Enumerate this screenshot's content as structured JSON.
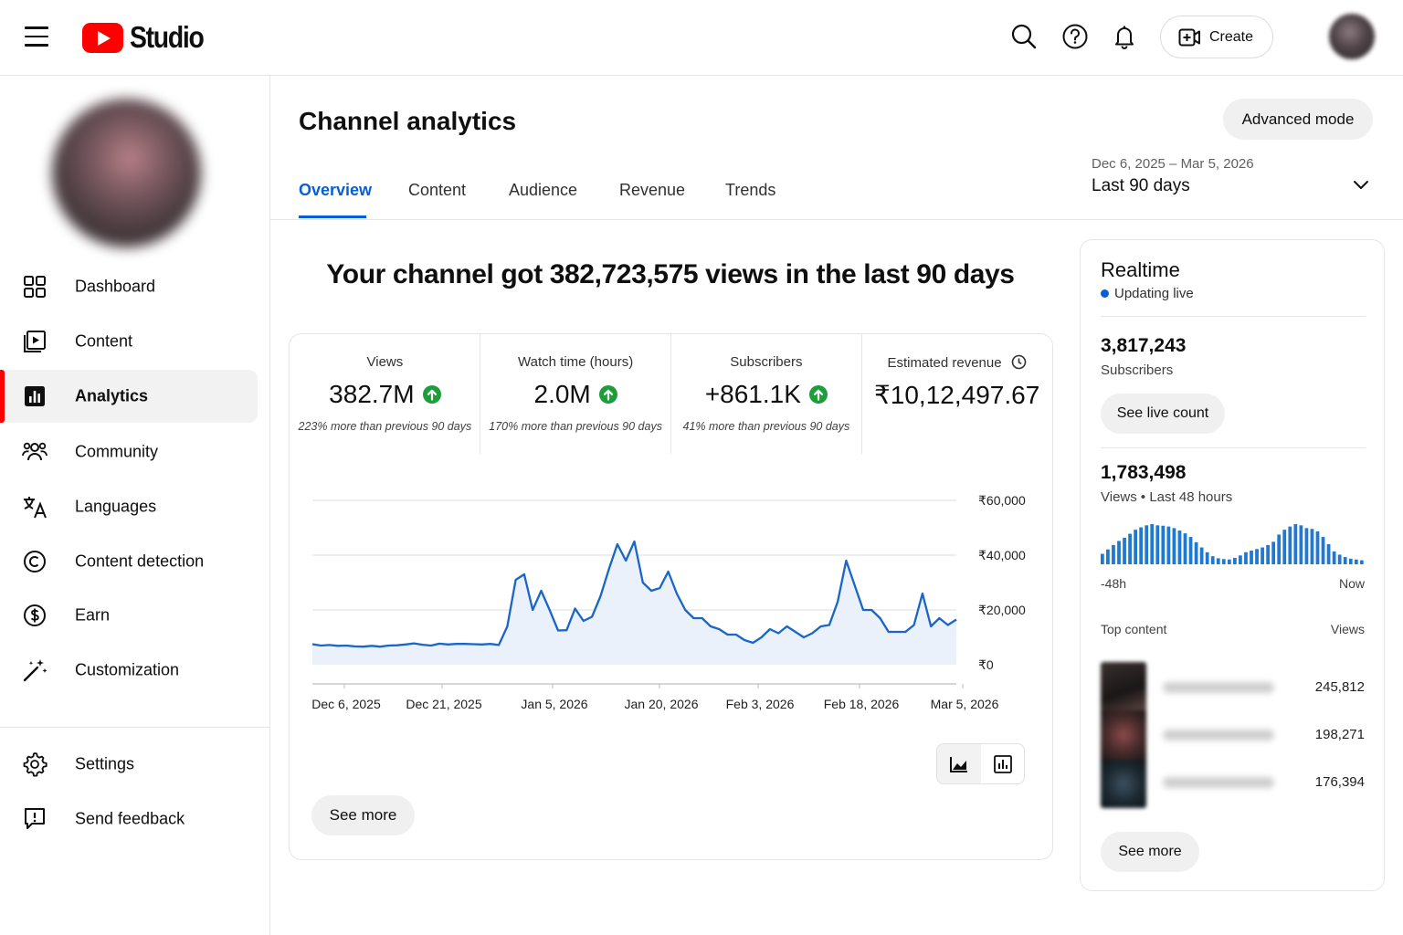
{
  "app": {
    "logo_text": "Studio"
  },
  "header": {
    "create_label": "Create"
  },
  "sidebar": {
    "items": [
      {
        "label": "Dashboard",
        "icon": "dashboard-icon"
      },
      {
        "label": "Content",
        "icon": "content-icon"
      },
      {
        "label": "Analytics",
        "icon": "analytics-icon",
        "active": true
      },
      {
        "label": "Community",
        "icon": "community-icon"
      },
      {
        "label": "Languages",
        "icon": "languages-icon"
      },
      {
        "label": "Content detection",
        "icon": "copyright-icon"
      },
      {
        "label": "Earn",
        "icon": "dollar-icon"
      },
      {
        "label": "Customization",
        "icon": "magic-wand-icon"
      }
    ],
    "bottom_items": [
      {
        "label": "Settings",
        "icon": "gear-icon"
      },
      {
        "label": "Send feedback",
        "icon": "feedback-icon"
      }
    ]
  },
  "main": {
    "title": "Channel analytics",
    "advanced_mode_label": "Advanced mode",
    "tabs": [
      {
        "label": "Overview",
        "active": true
      },
      {
        "label": "Content"
      },
      {
        "label": "Audience"
      },
      {
        "label": "Revenue"
      },
      {
        "label": "Trends"
      }
    ],
    "date_range": "Dec 6, 2025 – Mar 5, 2026",
    "date_preset": "Last 90 days",
    "headline": "Your channel got 382,723,575 views in the last 90 days",
    "metrics": [
      {
        "title": "Views",
        "value": "382.7M",
        "note": "223% more than previous 90 days",
        "trend": "up"
      },
      {
        "title": "Watch time (hours)",
        "value": "2.0M",
        "note": "170% more than previous 90 days",
        "trend": "up"
      },
      {
        "title": "Subscribers",
        "value": "+861.1K",
        "note": "41% more than previous 90 days",
        "trend": "up"
      },
      {
        "title": "Estimated revenue",
        "value": "₹10,12,497.67",
        "note": "",
        "trend": "none"
      }
    ],
    "see_more_label": "See more"
  },
  "chart_data": {
    "type": "area",
    "x_tick_labels": [
      "Dec 6, 2025",
      "Dec 21, 2025",
      "Jan 5, 2026",
      "Jan 20, 2026",
      "Feb 3, 2026",
      "Feb 18, 2026",
      "Mar 5, 2026"
    ],
    "y_tick_labels": [
      "₹60,000",
      "₹40,000",
      "₹20,000",
      "₹0"
    ],
    "ylim": [
      0,
      60000
    ],
    "y_axis_side": "right",
    "grid": true,
    "series": [
      {
        "color": "#1a65c8",
        "values": [
          7500,
          7000,
          7200,
          6900,
          7000,
          6700,
          6600,
          6900,
          6600,
          7000,
          7100,
          7400,
          7800,
          7300,
          7000,
          7700,
          7400,
          7600,
          7600,
          7500,
          7400,
          7600,
          7200,
          14000,
          31000,
          33000,
          20000,
          27000,
          20000,
          12500,
          12600,
          20500,
          16000,
          17500,
          25000,
          35000,
          44000,
          38000,
          45000,
          30000,
          27000,
          28000,
          34000,
          26000,
          20000,
          17000,
          17000,
          14000,
          13000,
          11000,
          11000,
          9000,
          8000,
          10000,
          13000,
          11500,
          14000,
          12000,
          10000,
          11500,
          14000,
          14500,
          23000,
          38000,
          29000,
          20000,
          20000,
          17000,
          12000,
          12000,
          12000,
          14500,
          26000,
          14000,
          17000,
          14500,
          16500
        ]
      }
    ]
  },
  "realtime": {
    "title": "Realtime",
    "live_label": "Updating live",
    "subscribers_value": "3,817,243",
    "subscribers_label": "Subscribers",
    "see_live_count_label": "See live count",
    "views_value": "1,783,498",
    "views_label": "Views • Last 48 hours",
    "axis_start": "-48h",
    "axis_end": "Now",
    "hourly_views_relative": [
      0.26,
      0.37,
      0.48,
      0.58,
      0.66,
      0.76,
      0.86,
      0.92,
      0.97,
      1.0,
      0.97,
      0.96,
      0.94,
      0.9,
      0.84,
      0.77,
      0.68,
      0.55,
      0.42,
      0.3,
      0.2,
      0.15,
      0.13,
      0.12,
      0.16,
      0.22,
      0.3,
      0.34,
      0.38,
      0.42,
      0.48,
      0.56,
      0.74,
      0.86,
      0.94,
      1.0,
      0.97,
      0.9,
      0.88,
      0.82,
      0.68,
      0.5,
      0.32,
      0.24,
      0.18,
      0.14,
      0.12,
      0.1
    ],
    "top_content_label": "Top content",
    "views_col_label": "Views",
    "top_content": [
      {
        "views": "245,812"
      },
      {
        "views": "198,271"
      },
      {
        "views": "176,394"
      }
    ],
    "see_more_label": "See more"
  }
}
